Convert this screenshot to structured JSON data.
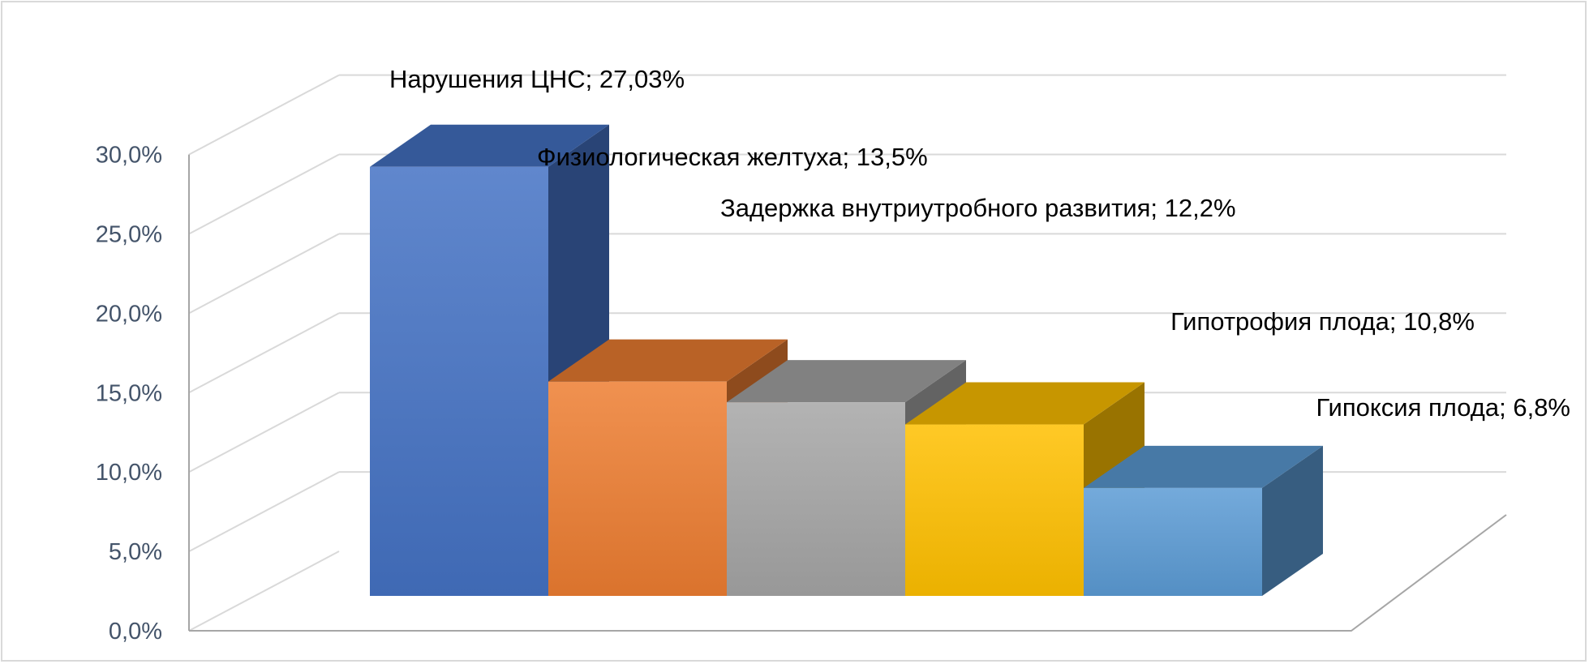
{
  "chart_data": {
    "type": "bar",
    "style": "3d-column",
    "title": "",
    "xlabel": "",
    "ylabel": "",
    "ylim": [
      0,
      30
    ],
    "y_tick_labels": [
      "0,0%",
      "5,0%",
      "10,0%",
      "15,0%",
      "20,0%",
      "25,0%",
      "30,0%"
    ],
    "grid": true,
    "legend": "none",
    "categories": [
      "Нарушения ЦНС",
      "Физиологическая желтуха",
      "Задержка внутриутробного развития",
      "Гипотрофия плода",
      "Гипоксия плода"
    ],
    "values": [
      27.03,
      13.5,
      12.2,
      10.8,
      6.8
    ],
    "data_labels": [
      "Нарушения ЦНС; 27,03%",
      "Физиологическая желтуха; 13,5%",
      "Задержка внутриутробного развития; 12,2%",
      "Гипотрофия плода; 10,8%",
      "Гипоксия плода; 6,8%"
    ],
    "colors": [
      "#4472c4",
      "#ed7d31",
      "#a5a5a5",
      "#ffc000",
      "#5b9bd5"
    ]
  }
}
